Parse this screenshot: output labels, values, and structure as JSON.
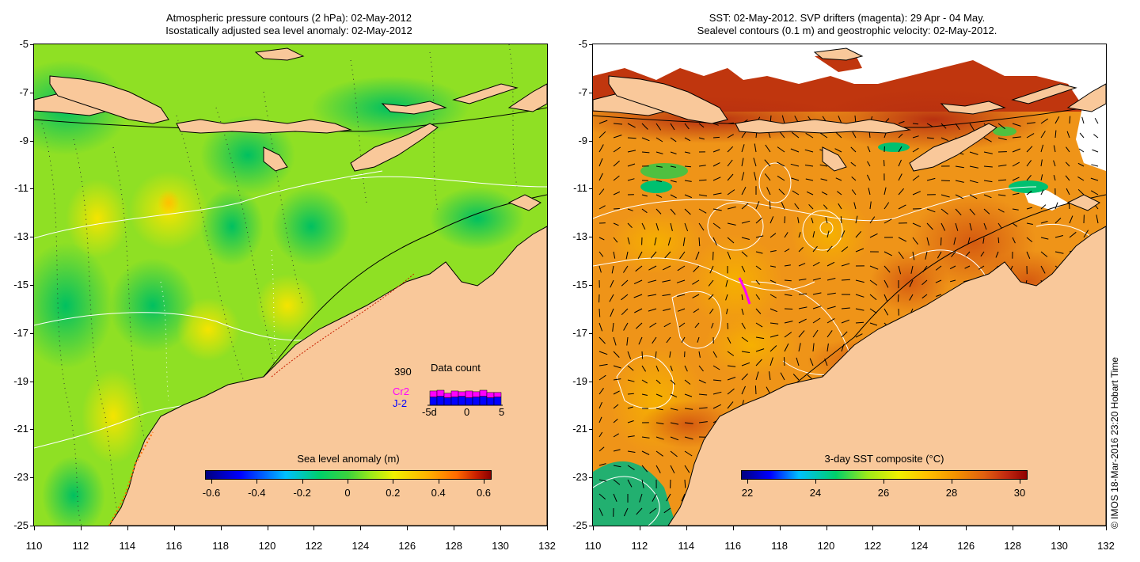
{
  "left_panel": {
    "title_line1": "Atmospheric pressure contours (2 hPa): 02-May-2012",
    "title_line2": "Isostatically adjusted sea level anomaly: 02-May-2012",
    "colorbar_title": "Sea level anomaly (m)",
    "colorbar_ticks": [
      "-0.6",
      "-0.4",
      "-0.2",
      "0",
      "0.2",
      "0.4",
      "0.6"
    ],
    "data_count": {
      "title": "Data count",
      "total": "390",
      "mission1": "Cr2",
      "mission2": "J-2",
      "mission1_color": "#ff00ff",
      "mission2_color": "#0000ff",
      "ticks": [
        "-5d",
        "0",
        "5"
      ],
      "bars": [
        {
          "j2": 0.55,
          "cr2": 0.4
        },
        {
          "j2": 0.6,
          "cr2": 0.4
        },
        {
          "j2": 0.5,
          "cr2": 0.3
        },
        {
          "j2": 0.55,
          "cr2": 0.4
        },
        {
          "j2": 0.6,
          "cr2": 0.3
        },
        {
          "j2": 0.5,
          "cr2": 0.45
        },
        {
          "j2": 0.55,
          "cr2": 0.35
        },
        {
          "j2": 0.6,
          "cr2": 0.4
        },
        {
          "j2": 0.5,
          "cr2": 0.35
        },
        {
          "j2": 0.55,
          "cr2": 0.3
        }
      ]
    }
  },
  "right_panel": {
    "title_line1": "SST: 02-May-2012. SVP drifters (magenta): 29 Apr - 04 May.",
    "title_line2": "Sealevel contours (0.1 m) and geostrophic velocity: 02-May-2012.",
    "colorbar_title": "3-day SST composite (°C)",
    "colorbar_ticks": [
      "22",
      "24",
      "26",
      "28",
      "30"
    ]
  },
  "axes": {
    "lat_labels": [
      "-5",
      "-7",
      "-9",
      "-11",
      "-13",
      "-15",
      "-17",
      "-19",
      "-21",
      "-23",
      "-25"
    ],
    "lon_labels": [
      "110",
      "112",
      "114",
      "116",
      "118",
      "120",
      "122",
      "124",
      "126",
      "128",
      "130",
      "132"
    ]
  },
  "credit": "© IMOS 18-Mar-2016 23:20 Hobart Time",
  "colors": {
    "land": "#f9c89a",
    "sla_scale": [
      "#00007f",
      "#0000ff",
      "#00bfff",
      "#00d06a",
      "#3cd23c",
      "#9be91a",
      "#f0f000",
      "#ffb000",
      "#ff6a00",
      "#c81e00",
      "#8b0000"
    ],
    "sst_scale": [
      "#00007f",
      "#0000ff",
      "#00bfff",
      "#00d06a",
      "#9be91a",
      "#f0f000",
      "#ffc000",
      "#f39200",
      "#e06010",
      "#c02810",
      "#900000"
    ],
    "drifter": "#ff00ff"
  }
}
